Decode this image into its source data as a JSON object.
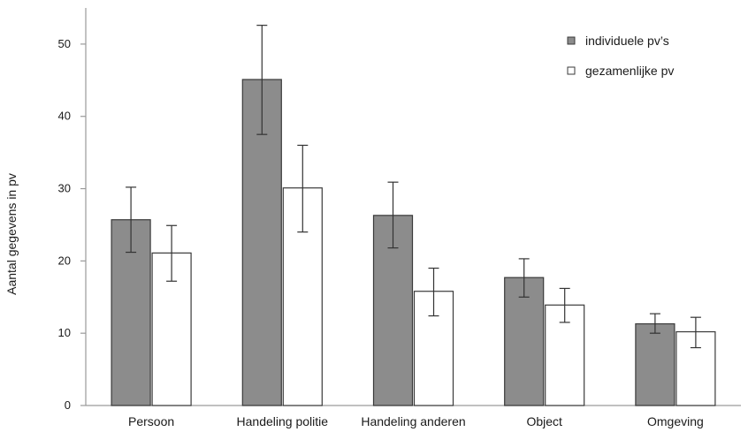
{
  "chart_data": {
    "type": "bar",
    "title": "",
    "xlabel": "",
    "ylabel": "Aantal gegevens in pv",
    "ylim": [
      0,
      55
    ],
    "yticks": [
      0,
      10,
      20,
      30,
      40,
      50
    ],
    "grid": false,
    "legend_position": "top-right",
    "categories": [
      "Persoon",
      "Handeling politie",
      "Handeling anderen",
      "Object",
      "Omgeving"
    ],
    "series": [
      {
        "name": "individuele pv’s",
        "color": "#8c8c8c",
        "values": [
          25.7,
          45.1,
          26.3,
          17.7,
          11.3
        ],
        "error": [
          [
            21.2,
            30.2
          ],
          [
            37.5,
            52.6
          ],
          [
            21.8,
            30.9
          ],
          [
            15.0,
            20.3
          ],
          [
            10.0,
            12.7
          ]
        ]
      },
      {
        "name": "gezamenlijke pv",
        "color": "#ffffff",
        "values": [
          21.1,
          30.1,
          15.8,
          13.9,
          10.2
        ],
        "error": [
          [
            17.2,
            24.9
          ],
          [
            24.0,
            36.0
          ],
          [
            12.4,
            19.0
          ],
          [
            11.5,
            16.2
          ],
          [
            8.0,
            12.2
          ]
        ]
      }
    ]
  }
}
